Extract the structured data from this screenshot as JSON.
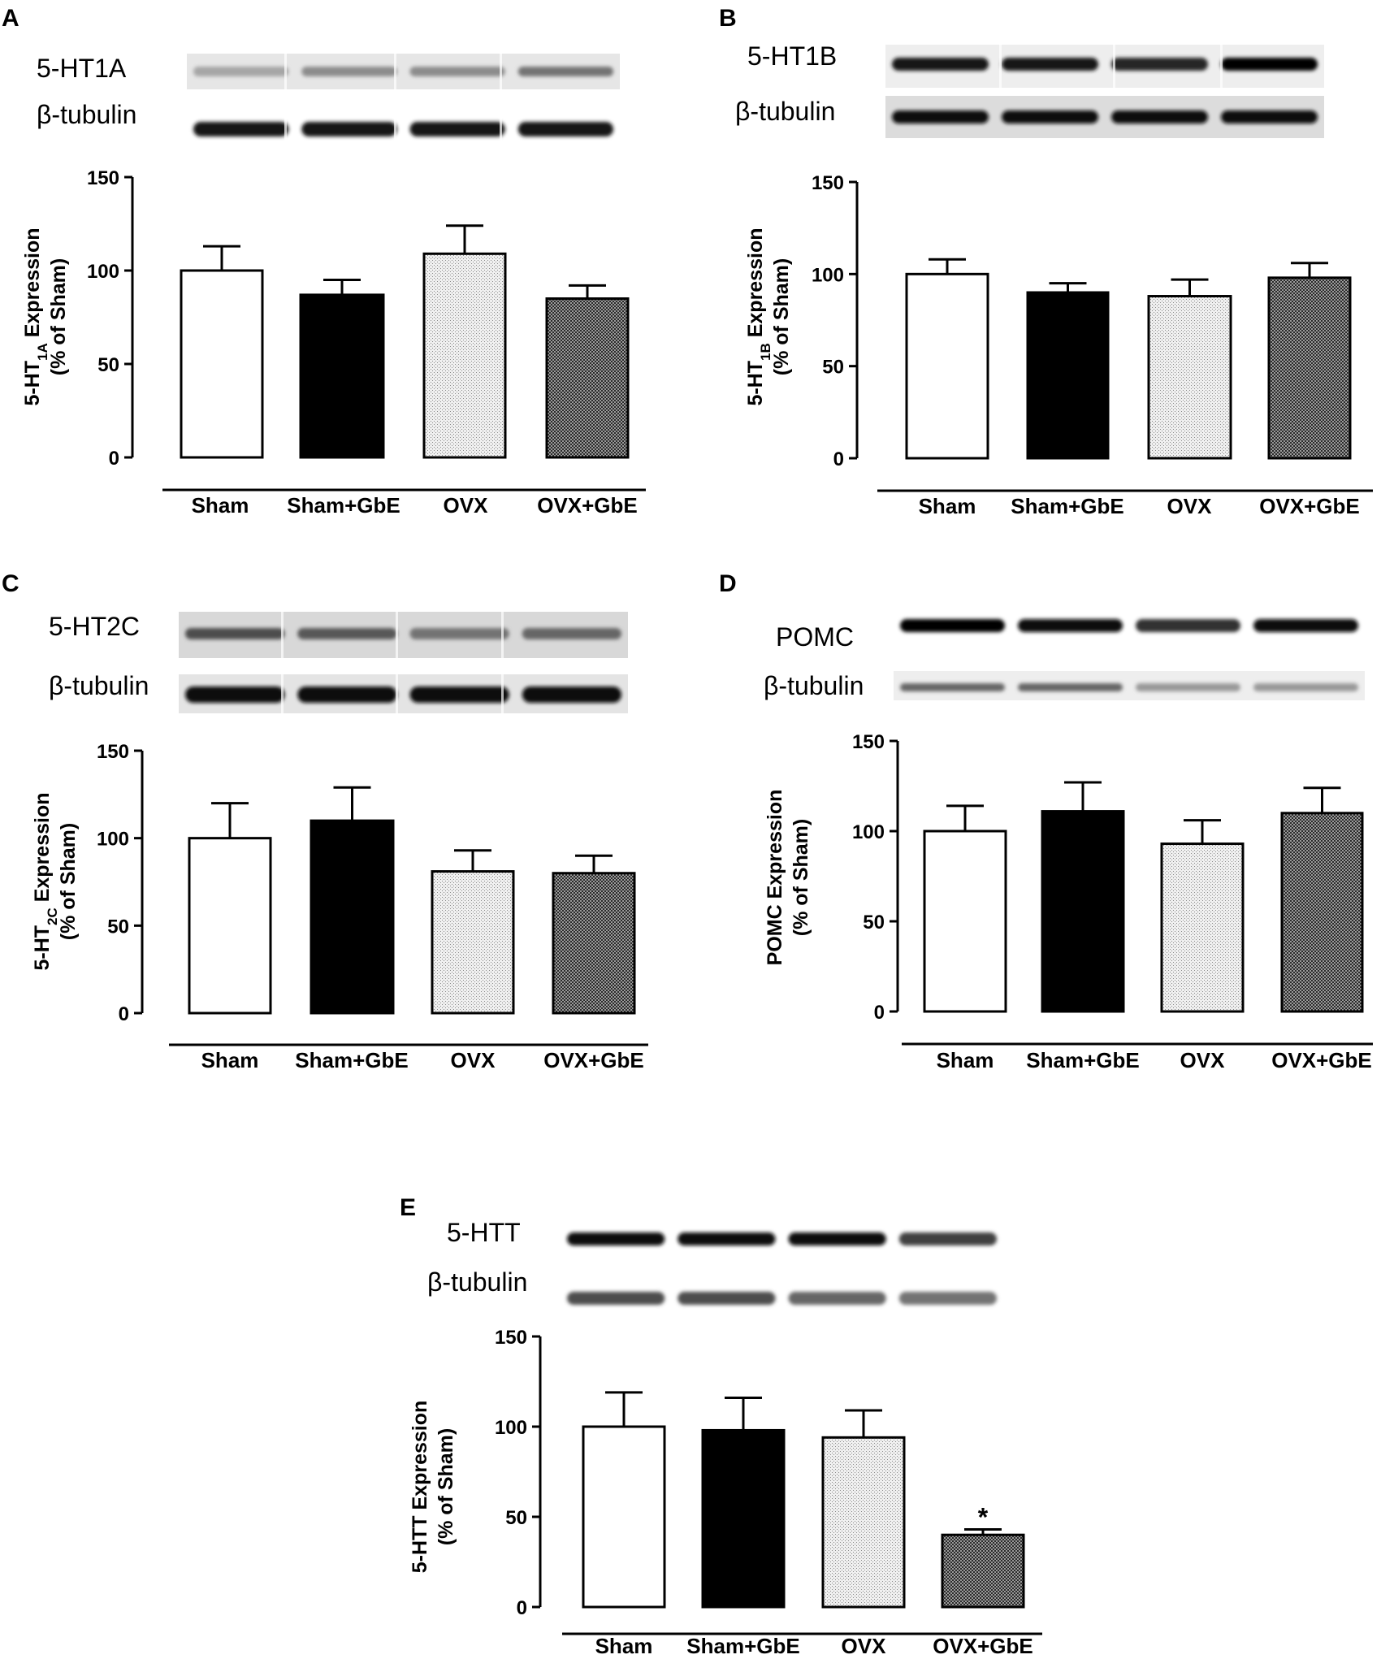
{
  "patterns": {
    "Sham": "white",
    "Sham+GbE": "black",
    "OVX": "light-dotted",
    "OVX+GbE": "dark-checkered"
  },
  "chart_data": [
    {
      "panel": "A",
      "type": "bar",
      "blot_labels": [
        "5-HT1A",
        "β-tubulin"
      ],
      "ylabel_main": "5-HT",
      "ylabel_sub": "1A",
      "ylabel_rest": " Expression",
      "ylabel_line2": "(% of Sham)",
      "categories": [
        "Sham",
        "Sham+GbE",
        "OVX",
        "OVX+GbE"
      ],
      "values": [
        100,
        87,
        109,
        85
      ],
      "errors": [
        13,
        8,
        15,
        7
      ],
      "yticks": [
        "0",
        "50",
        "100",
        "150"
      ],
      "ylim": [
        0,
        150
      ],
      "annotations": []
    },
    {
      "panel": "B",
      "type": "bar",
      "blot_labels": [
        "5-HT1B",
        "β-tubulin"
      ],
      "ylabel_main": "5-HT",
      "ylabel_sub": "1B",
      "ylabel_rest": " Expression",
      "ylabel_line2": "(% of Sham)",
      "categories": [
        "Sham",
        "Sham+GbE",
        "OVX",
        "OVX+GbE"
      ],
      "values": [
        100,
        90,
        88,
        98
      ],
      "errors": [
        8,
        5,
        9,
        8
      ],
      "yticks": [
        "0",
        "50",
        "100",
        "150"
      ],
      "ylim": [
        0,
        150
      ],
      "annotations": []
    },
    {
      "panel": "C",
      "type": "bar",
      "blot_labels": [
        "5-HT2C",
        "β-tubulin"
      ],
      "ylabel_main": "5-HT",
      "ylabel_sub": "2C",
      "ylabel_rest": " Expression",
      "ylabel_line2": "(% of Sham)",
      "categories": [
        "Sham",
        "Sham+GbE",
        "OVX",
        "OVX+GbE"
      ],
      "values": [
        100,
        110,
        81,
        80
      ],
      "errors": [
        20,
        19,
        12,
        10
      ],
      "yticks": [
        "0",
        "50",
        "100",
        "150"
      ],
      "ylim": [
        0,
        150
      ],
      "annotations": []
    },
    {
      "panel": "D",
      "type": "bar",
      "blot_labels": [
        "POMC",
        "β-tubulin"
      ],
      "ylabel_main": "POMC Expression",
      "ylabel_sub": "",
      "ylabel_rest": "",
      "ylabel_line2": "(% of Sham)",
      "categories": [
        "Sham",
        "Sham+GbE",
        "OVX",
        "OVX+GbE"
      ],
      "values": [
        100,
        111,
        93,
        110
      ],
      "errors": [
        14,
        16,
        13,
        14
      ],
      "yticks": [
        "0",
        "50",
        "100",
        "150"
      ],
      "ylim": [
        0,
        150
      ],
      "annotations": []
    },
    {
      "panel": "E",
      "type": "bar",
      "blot_labels": [
        "5-HTT",
        "β-tubulin"
      ],
      "ylabel_main": "5-HTT Expression",
      "ylabel_sub": "",
      "ylabel_rest": "",
      "ylabel_line2": "(% of Sham)",
      "categories": [
        "Sham",
        "Sham+GbE",
        "OVX",
        "OVX+GbE"
      ],
      "values": [
        100,
        98,
        94,
        40
      ],
      "errors": [
        19,
        18,
        15,
        3
      ],
      "yticks": [
        "0",
        "50",
        "100",
        "150"
      ],
      "ylim": [
        0,
        150
      ],
      "annotations": [
        {
          "category": "OVX+GbE",
          "text": "*"
        }
      ]
    }
  ]
}
